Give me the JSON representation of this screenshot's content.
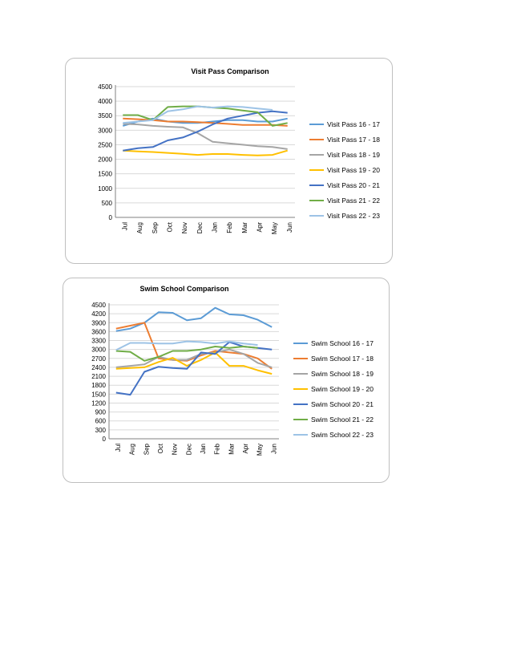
{
  "chart_data": [
    {
      "type": "line",
      "title": "Visit Pass Comparison",
      "categories": [
        "Jul",
        "Aug",
        "Sep",
        "Oct",
        "Nov",
        "Dec",
        "Jan",
        "Feb",
        "Mar",
        "Apr",
        "May",
        "Jun"
      ],
      "ylim": [
        0,
        4500
      ],
      "yticks": [
        0,
        500,
        1000,
        1500,
        2000,
        2500,
        3000,
        3500,
        4000,
        4500
      ],
      "grid": true,
      "legend_position": "right",
      "series": [
        {
          "name": "Visit Pass 16 - 17",
          "color": "#5b9bd5",
          "values": [
            3150,
            3300,
            3400,
            3300,
            3250,
            3250,
            3300,
            3350,
            3350,
            3300,
            3300,
            3400
          ]
        },
        {
          "name": "Visit Pass 17 - 18",
          "color": "#ed7d31",
          "values": [
            3400,
            3380,
            3350,
            3300,
            3300,
            3280,
            3250,
            3220,
            3180,
            3180,
            3180,
            3150
          ]
        },
        {
          "name": "Visit Pass 18 - 19",
          "color": "#a5a5a5",
          "values": [
            3220,
            3200,
            3150,
            3120,
            3100,
            2900,
            2600,
            2550,
            2500,
            2450,
            2420,
            2350
          ]
        },
        {
          "name": "Visit Pass 19 - 20",
          "color": "#ffc000",
          "values": [
            2300,
            2270,
            2250,
            2220,
            2190,
            2150,
            2180,
            2180,
            2150,
            2130,
            2150,
            2300
          ]
        },
        {
          "name": "Visit Pass 20 - 21",
          "color": "#4472c4",
          "values": [
            2300,
            2380,
            2420,
            2650,
            2750,
            2950,
            3200,
            3400,
            3500,
            3600,
            3650,
            3600
          ]
        },
        {
          "name": "Visit Pass 21 - 22",
          "color": "#70ad47",
          "values": [
            3520,
            3520,
            3350,
            3800,
            3820,
            3820,
            3780,
            3750,
            3680,
            3620,
            3150,
            3250
          ]
        },
        {
          "name": "Visit Pass 22 - 23",
          "color": "#9dc3e6",
          "values": [
            3250,
            3300,
            3350,
            3650,
            3720,
            3820,
            3780,
            3820,
            3800,
            3750,
            3700,
            null
          ]
        }
      ]
    },
    {
      "type": "line",
      "title": "Swim School Comparison",
      "categories": [
        "Jul",
        "Aug",
        "Sep",
        "Oct",
        "Nov",
        "Dec",
        "Jan",
        "Feb",
        "Mar",
        "Apr",
        "May",
        "Jun"
      ],
      "ylim": [
        0,
        4500
      ],
      "yticks": [
        0,
        300,
        600,
        900,
        1200,
        1500,
        1800,
        2100,
        2400,
        2700,
        3000,
        3300,
        3600,
        3900,
        4200,
        4500
      ],
      "grid": true,
      "legend_position": "right",
      "series": [
        {
          "name": "Swim School 16 - 17",
          "color": "#5b9bd5",
          "values": [
            3620,
            3700,
            3900,
            4250,
            4230,
            3980,
            4050,
            4400,
            4180,
            4150,
            4000,
            3750
          ]
        },
        {
          "name": "Swim School 17 - 18",
          "color": "#ed7d31",
          "values": [
            3700,
            3800,
            3900,
            2700,
            2650,
            2620,
            2800,
            2950,
            2900,
            2850,
            2700,
            2350
          ]
        },
        {
          "name": "Swim School 18 - 19",
          "color": "#a5a5a5",
          "values": [
            2400,
            2450,
            2500,
            2750,
            2650,
            2650,
            2850,
            2900,
            3000,
            2850,
            2550,
            2400
          ]
        },
        {
          "name": "Swim School 19 - 20",
          "color": "#ffc000",
          "values": [
            2350,
            2380,
            2400,
            2580,
            2720,
            2450,
            2650,
            2900,
            2450,
            2450,
            2300,
            2180
          ]
        },
        {
          "name": "Swim School 20 - 21",
          "color": "#4472c4",
          "values": [
            1550,
            1480,
            2250,
            2420,
            2380,
            2350,
            2900,
            2850,
            3250,
            3100,
            3050,
            3000
          ]
        },
        {
          "name": "Swim School 21 - 22",
          "color": "#70ad47",
          "values": [
            2950,
            2920,
            2620,
            2750,
            2950,
            2950,
            3000,
            3100,
            3050,
            3100,
            3050,
            null
          ]
        },
        {
          "name": "Swim School 22 - 23",
          "color": "#9dc3e6",
          "values": [
            2980,
            3220,
            3220,
            3200,
            3200,
            3270,
            3250,
            3200,
            3270,
            3200,
            3150,
            null
          ]
        }
      ]
    }
  ]
}
